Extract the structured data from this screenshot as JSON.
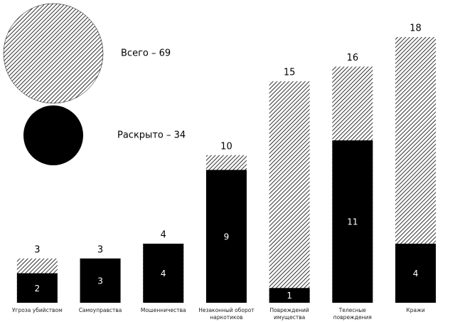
{
  "chart_data": {
    "type": "bar",
    "categories": [
      "Угроза убийством",
      "Самоуправства",
      "Мошенничества",
      "Незаконный оборот наркотиков",
      "Повреждений имущества",
      "Телесные повреждения",
      "Кражи"
    ],
    "series": [
      {
        "name": "Всего – 69",
        "color": "#000000",
        "hatch": true,
        "values": [
          3,
          3,
          4,
          10,
          15,
          16,
          18
        ]
      },
      {
        "name": "Раскрыто – 34",
        "color": "#000000",
        "hatch": false,
        "values": [
          2,
          3,
          4,
          9,
          1,
          11,
          4
        ]
      }
    ]
  }
}
